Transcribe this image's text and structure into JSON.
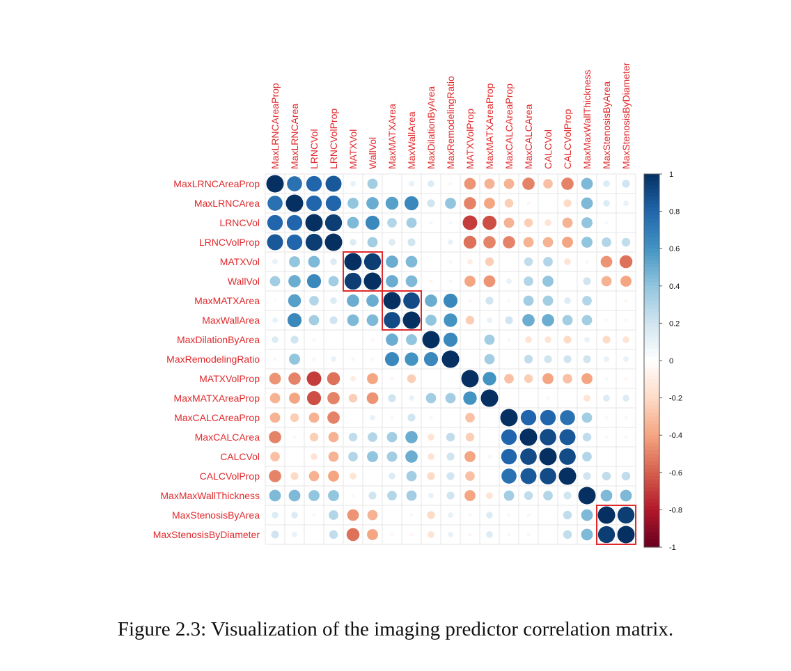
{
  "caption": "Figure 2.3: Visualization of the imaging predictor correlation matrix.",
  "chart_data": {
    "type": "heatmap",
    "variables": [
      "MaxLRNCAreaProp",
      "MaxLRNCArea",
      "LRNCVol",
      "LRNCVolProp",
      "MATXVol",
      "WallVol",
      "MaxMATXArea",
      "MaxWallArea",
      "MaxDilationByArea",
      "MaxRemodelingRatio",
      "MATXVolProp",
      "MaxMATXAreaProp",
      "MaxCALCAreaProp",
      "MaxCALCArea",
      "CALCVol",
      "CALCVolProp",
      "MaxMaxWallThickness",
      "MaxStenosisByArea",
      "MaxStenosisByDiameter"
    ],
    "matrix": [
      [
        1.0,
        0.75,
        0.8,
        0.85,
        0.1,
        0.35,
        0.03,
        0.1,
        0.15,
        0.05,
        -0.45,
        -0.35,
        -0.35,
        -0.5,
        -0.3,
        -0.5,
        0.45,
        0.15,
        0.2
      ],
      [
        0.75,
        1.0,
        0.8,
        0.8,
        0.4,
        0.5,
        0.55,
        0.65,
        0.2,
        0.4,
        -0.5,
        -0.4,
        -0.25,
        -0.05,
        0.0,
        -0.2,
        0.45,
        0.15,
        0.1
      ],
      [
        0.8,
        0.8,
        1.0,
        0.95,
        0.45,
        0.65,
        0.3,
        0.35,
        0.05,
        0.05,
        -0.7,
        -0.65,
        -0.35,
        -0.25,
        -0.15,
        -0.35,
        0.4,
        0.05,
        0.0
      ],
      [
        0.85,
        0.8,
        0.95,
        1.0,
        0.15,
        0.35,
        0.15,
        0.2,
        0.0,
        0.1,
        -0.55,
        -0.5,
        -0.5,
        -0.35,
        -0.35,
        -0.4,
        0.4,
        0.3,
        0.25
      ],
      [
        0.1,
        0.4,
        0.45,
        0.15,
        1.0,
        0.95,
        0.5,
        0.45,
        0.0,
        0.05,
        -0.1,
        -0.25,
        0.0,
        0.25,
        0.3,
        -0.15,
        0.05,
        -0.45,
        -0.55
      ],
      [
        0.35,
        0.5,
        0.65,
        0.35,
        0.95,
        1.0,
        0.5,
        0.45,
        -0.05,
        0.05,
        -0.4,
        -0.45,
        0.1,
        0.3,
        0.4,
        0.0,
        0.2,
        -0.35,
        -0.4
      ],
      [
        0.03,
        0.55,
        0.3,
        0.15,
        0.5,
        0.5,
        1.0,
        0.9,
        0.5,
        0.65,
        -0.05,
        0.2,
        0.05,
        0.35,
        0.35,
        0.15,
        0.3,
        0.0,
        -0.05
      ],
      [
        0.1,
        0.65,
        0.35,
        0.2,
        0.45,
        0.45,
        0.9,
        1.0,
        0.4,
        0.6,
        -0.25,
        0.1,
        0.2,
        0.5,
        0.5,
        0.35,
        0.35,
        0.05,
        -0.05
      ],
      [
        0.15,
        0.2,
        0.05,
        0.0,
        0.0,
        -0.05,
        0.5,
        0.4,
        1.0,
        0.65,
        0.0,
        0.35,
        0.05,
        -0.15,
        -0.15,
        -0.2,
        0.1,
        -0.2,
        -0.15
      ],
      [
        0.05,
        0.4,
        0.05,
        0.1,
        0.05,
        0.05,
        0.65,
        0.6,
        0.65,
        1.0,
        0.0,
        0.35,
        0.0,
        0.25,
        0.2,
        0.2,
        0.2,
        0.1,
        0.1
      ],
      [
        -0.45,
        -0.5,
        -0.7,
        -0.55,
        -0.1,
        -0.4,
        -0.05,
        -0.25,
        0.0,
        0.0,
        1.0,
        0.6,
        -0.3,
        -0.25,
        -0.4,
        -0.3,
        -0.4,
        0.05,
        -0.05
      ],
      [
        -0.35,
        -0.4,
        -0.65,
        -0.5,
        -0.25,
        -0.45,
        0.2,
        0.1,
        0.35,
        0.35,
        0.6,
        1.0,
        0.0,
        0.0,
        -0.05,
        0.0,
        -0.15,
        0.15,
        0.15
      ],
      [
        -0.35,
        -0.25,
        -0.35,
        -0.5,
        0.0,
        0.1,
        0.05,
        0.2,
        0.05,
        0.0,
        -0.3,
        0.0,
        1.0,
        0.8,
        0.8,
        0.75,
        0.35,
        0.05,
        0.05
      ],
      [
        -0.5,
        -0.05,
        -0.25,
        -0.35,
        0.25,
        0.3,
        0.35,
        0.5,
        -0.15,
        0.25,
        -0.25,
        0.0,
        0.8,
        1.0,
        0.9,
        0.85,
        0.25,
        0.05,
        0.05
      ],
      [
        -0.3,
        0.0,
        -0.15,
        -0.35,
        0.3,
        0.4,
        0.35,
        0.5,
        -0.15,
        0.2,
        -0.4,
        -0.05,
        0.8,
        0.9,
        1.0,
        0.9,
        0.3,
        0.0,
        0.0
      ],
      [
        -0.5,
        -0.2,
        -0.35,
        -0.4,
        -0.15,
        0.0,
        0.15,
        0.35,
        -0.2,
        0.2,
        -0.3,
        0.0,
        0.75,
        0.85,
        0.9,
        1.0,
        0.2,
        0.25,
        0.25
      ],
      [
        0.45,
        0.45,
        0.4,
        0.4,
        0.05,
        0.2,
        0.3,
        0.35,
        0.1,
        0.2,
        -0.4,
        -0.15,
        0.35,
        0.25,
        0.3,
        0.2,
        1.0,
        0.45,
        0.45
      ],
      [
        0.15,
        0.15,
        0.05,
        0.3,
        -0.45,
        -0.35,
        0.0,
        0.05,
        -0.2,
        0.1,
        0.05,
        0.15,
        0.05,
        0.05,
        0.0,
        0.25,
        0.45,
        1.0,
        0.95
      ],
      [
        0.2,
        0.1,
        0.0,
        0.25,
        -0.55,
        -0.4,
        -0.05,
        -0.05,
        -0.15,
        0.1,
        -0.05,
        0.15,
        0.05,
        0.05,
        0.0,
        0.25,
        0.45,
        0.95,
        1.0
      ]
    ],
    "highlight_blocks": [
      {
        "start": 4,
        "end": 5
      },
      {
        "start": 6,
        "end": 7
      },
      {
        "start": 17,
        "end": 18
      }
    ],
    "colorbar": {
      "range": [
        -1,
        1
      ],
      "ticks": [
        "1",
        "0.8",
        "0.6",
        "0.4",
        "0.2",
        "0",
        "-0.2",
        "-0.4",
        "-0.6",
        "-0.8",
        "-1"
      ]
    },
    "colors": {
      "label": "#e0292c",
      "highlight": "#e0292c",
      "grid": "#e6e6e6",
      "scale": [
        "#67001f",
        "#b2182b",
        "#d6604d",
        "#f4a582",
        "#fddbc7",
        "#ffffff",
        "#d1e5f0",
        "#92c5de",
        "#4393c3",
        "#2166ac",
        "#053061"
      ]
    }
  }
}
